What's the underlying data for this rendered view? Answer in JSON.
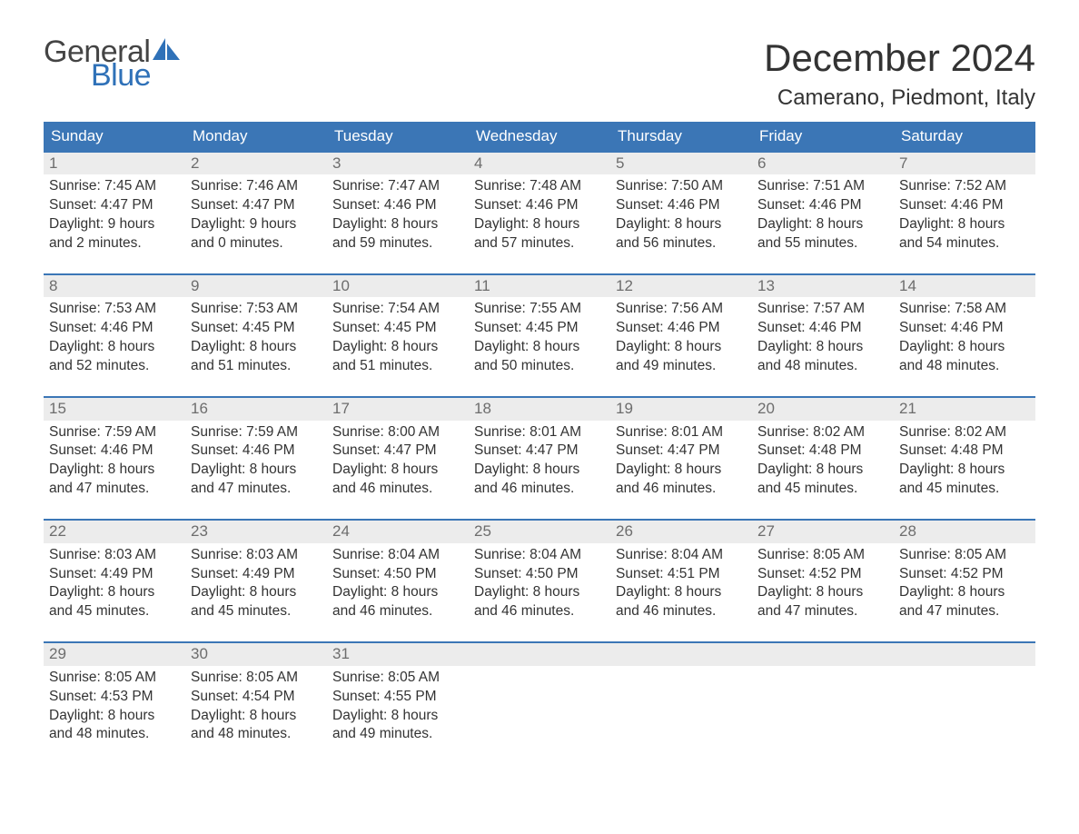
{
  "logo": {
    "word1": "General",
    "word2": "Blue",
    "sail_color": "#2f71b8",
    "text_color_gray": "#444444"
  },
  "title": "December 2024",
  "location": "Camerano, Piedmont, Italy",
  "colors": {
    "header_bg": "#3b76b6",
    "header_text": "#ffffff",
    "band_bg": "#ececec",
    "band_text": "#6d6d6d",
    "body_text": "#333333",
    "rule": "#3b76b6",
    "page_bg": "#ffffff"
  },
  "dow": [
    "Sunday",
    "Monday",
    "Tuesday",
    "Wednesday",
    "Thursday",
    "Friday",
    "Saturday"
  ],
  "weeks": [
    [
      {
        "n": "1",
        "sr": "7:45 AM",
        "ss": "4:47 PM",
        "dl": "9 hours and 2 minutes."
      },
      {
        "n": "2",
        "sr": "7:46 AM",
        "ss": "4:47 PM",
        "dl": "9 hours and 0 minutes."
      },
      {
        "n": "3",
        "sr": "7:47 AM",
        "ss": "4:46 PM",
        "dl": "8 hours and 59 minutes."
      },
      {
        "n": "4",
        "sr": "7:48 AM",
        "ss": "4:46 PM",
        "dl": "8 hours and 57 minutes."
      },
      {
        "n": "5",
        "sr": "7:50 AM",
        "ss": "4:46 PM",
        "dl": "8 hours and 56 minutes."
      },
      {
        "n": "6",
        "sr": "7:51 AM",
        "ss": "4:46 PM",
        "dl": "8 hours and 55 minutes."
      },
      {
        "n": "7",
        "sr": "7:52 AM",
        "ss": "4:46 PM",
        "dl": "8 hours and 54 minutes."
      }
    ],
    [
      {
        "n": "8",
        "sr": "7:53 AM",
        "ss": "4:46 PM",
        "dl": "8 hours and 52 minutes."
      },
      {
        "n": "9",
        "sr": "7:53 AM",
        "ss": "4:45 PM",
        "dl": "8 hours and 51 minutes."
      },
      {
        "n": "10",
        "sr": "7:54 AM",
        "ss": "4:45 PM",
        "dl": "8 hours and 51 minutes."
      },
      {
        "n": "11",
        "sr": "7:55 AM",
        "ss": "4:45 PM",
        "dl": "8 hours and 50 minutes."
      },
      {
        "n": "12",
        "sr": "7:56 AM",
        "ss": "4:46 PM",
        "dl": "8 hours and 49 minutes."
      },
      {
        "n": "13",
        "sr": "7:57 AM",
        "ss": "4:46 PM",
        "dl": "8 hours and 48 minutes."
      },
      {
        "n": "14",
        "sr": "7:58 AM",
        "ss": "4:46 PM",
        "dl": "8 hours and 48 minutes."
      }
    ],
    [
      {
        "n": "15",
        "sr": "7:59 AM",
        "ss": "4:46 PM",
        "dl": "8 hours and 47 minutes."
      },
      {
        "n": "16",
        "sr": "7:59 AM",
        "ss": "4:46 PM",
        "dl": "8 hours and 47 minutes."
      },
      {
        "n": "17",
        "sr": "8:00 AM",
        "ss": "4:47 PM",
        "dl": "8 hours and 46 minutes."
      },
      {
        "n": "18",
        "sr": "8:01 AM",
        "ss": "4:47 PM",
        "dl": "8 hours and 46 minutes."
      },
      {
        "n": "19",
        "sr": "8:01 AM",
        "ss": "4:47 PM",
        "dl": "8 hours and 46 minutes."
      },
      {
        "n": "20",
        "sr": "8:02 AM",
        "ss": "4:48 PM",
        "dl": "8 hours and 45 minutes."
      },
      {
        "n": "21",
        "sr": "8:02 AM",
        "ss": "4:48 PM",
        "dl": "8 hours and 45 minutes."
      }
    ],
    [
      {
        "n": "22",
        "sr": "8:03 AM",
        "ss": "4:49 PM",
        "dl": "8 hours and 45 minutes."
      },
      {
        "n": "23",
        "sr": "8:03 AM",
        "ss": "4:49 PM",
        "dl": "8 hours and 45 minutes."
      },
      {
        "n": "24",
        "sr": "8:04 AM",
        "ss": "4:50 PM",
        "dl": "8 hours and 46 minutes."
      },
      {
        "n": "25",
        "sr": "8:04 AM",
        "ss": "4:50 PM",
        "dl": "8 hours and 46 minutes."
      },
      {
        "n": "26",
        "sr": "8:04 AM",
        "ss": "4:51 PM",
        "dl": "8 hours and 46 minutes."
      },
      {
        "n": "27",
        "sr": "8:05 AM",
        "ss": "4:52 PM",
        "dl": "8 hours and 47 minutes."
      },
      {
        "n": "28",
        "sr": "8:05 AM",
        "ss": "4:52 PM",
        "dl": "8 hours and 47 minutes."
      }
    ],
    [
      {
        "n": "29",
        "sr": "8:05 AM",
        "ss": "4:53 PM",
        "dl": "8 hours and 48 minutes."
      },
      {
        "n": "30",
        "sr": "8:05 AM",
        "ss": "4:54 PM",
        "dl": "8 hours and 48 minutes."
      },
      {
        "n": "31",
        "sr": "8:05 AM",
        "ss": "4:55 PM",
        "dl": "8 hours and 49 minutes."
      },
      null,
      null,
      null,
      null
    ]
  ],
  "labels": {
    "sunrise": "Sunrise:",
    "sunset": "Sunset:",
    "daylight": "Daylight:"
  }
}
